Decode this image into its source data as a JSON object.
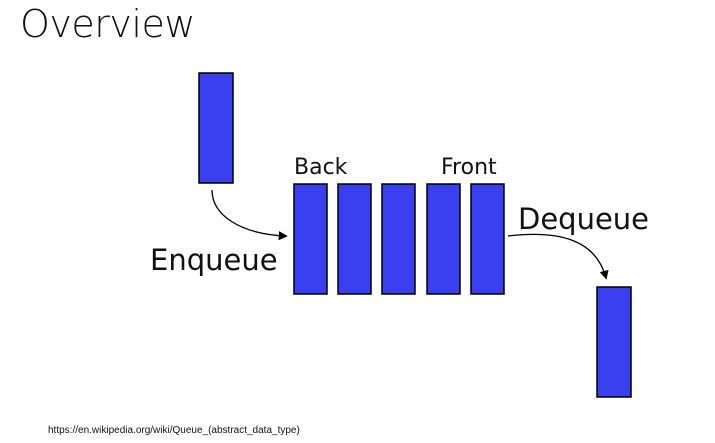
{
  "slide": {
    "title": "Overview",
    "source": "https://en.wikipedia.org/wiki/Queue_(abstract_data_type)"
  },
  "diagram": {
    "labels": {
      "back": "Back",
      "front": "Front",
      "enqueue": "Enqueue",
      "dequeue": "Dequeue"
    },
    "queue_length": 5,
    "colors": {
      "block_fill": "#3a3ff0",
      "block_stroke": "#000000",
      "arrow": "#000000"
    }
  }
}
